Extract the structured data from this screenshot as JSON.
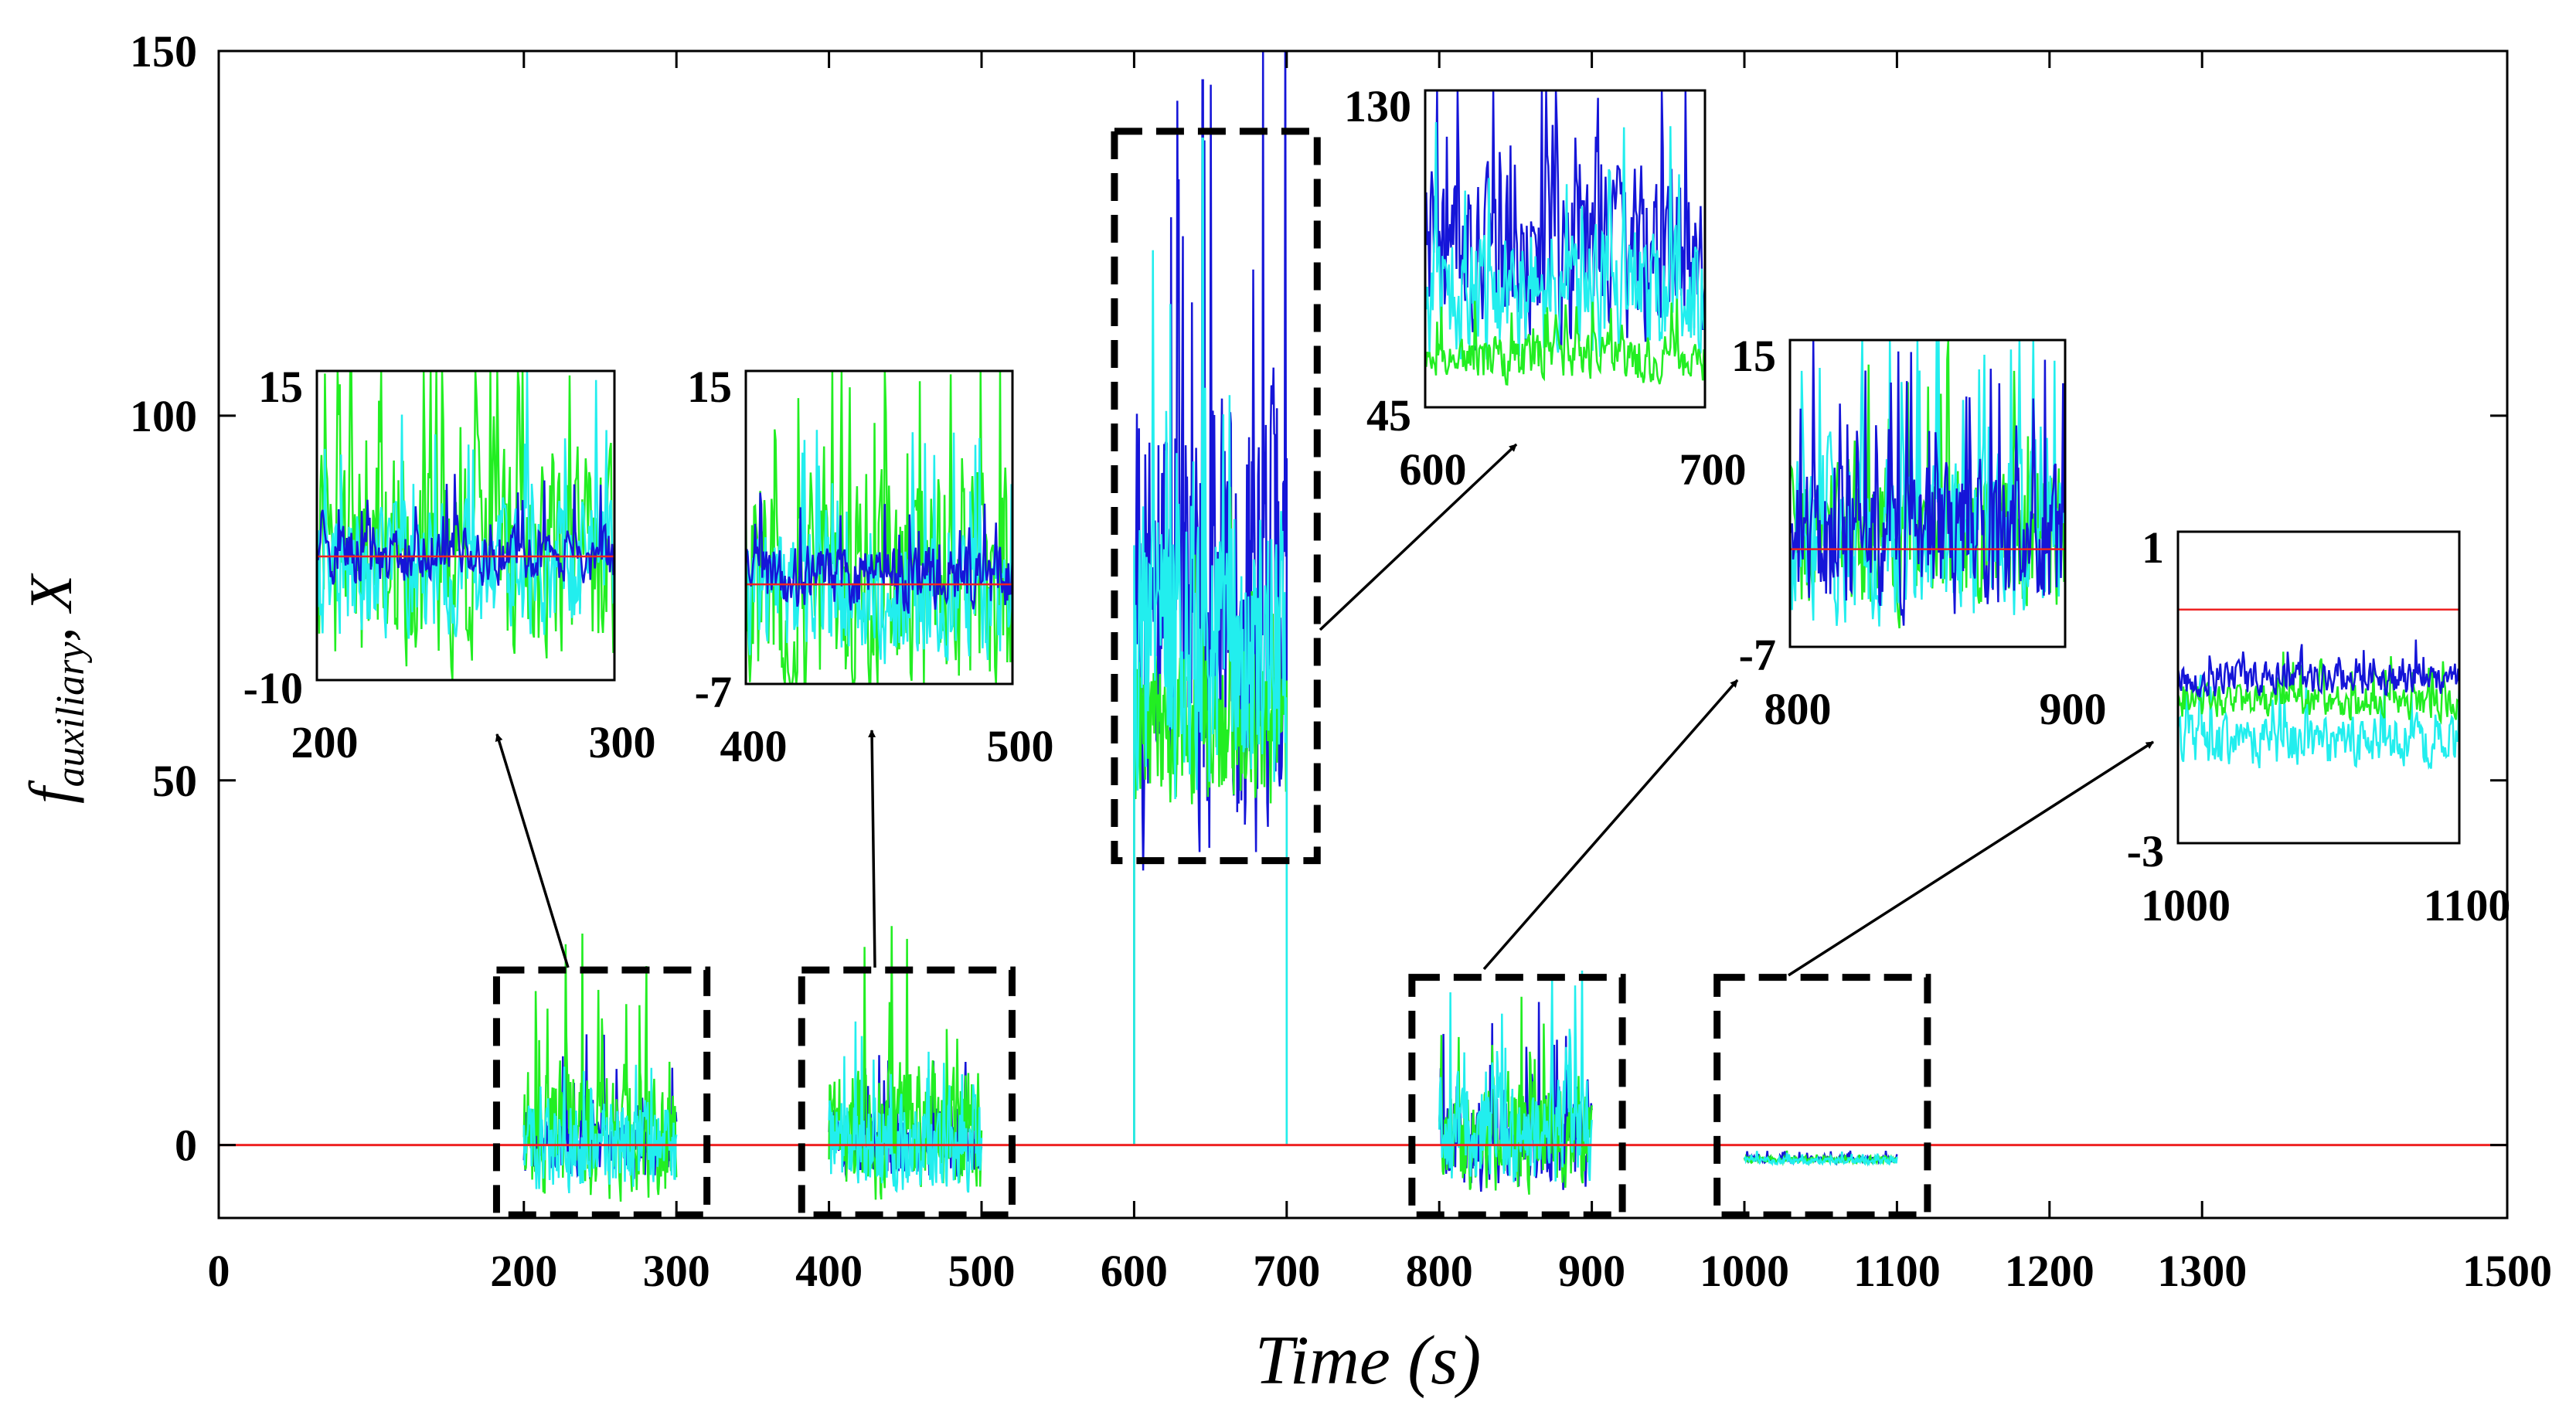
{
  "chart_data": {
    "type": "line",
    "xlabel": "Time (s)",
    "ylabel_main": "f",
    "ylabel_sub": "auxiliary",
    "ylabel_suffix": ", X",
    "xlim": [
      0,
      1500
    ],
    "ylim": [
      -10,
      150
    ],
    "xticks": [
      0,
      200,
      300,
      400,
      500,
      600,
      700,
      800,
      900,
      1000,
      1100,
      1200,
      1300,
      1500
    ],
    "yticks": [
      0,
      50,
      100,
      150
    ],
    "colors": {
      "blue": "#1515d8",
      "green": "#22ee22",
      "cyan": "#22eeee",
      "red": "#ee2222"
    },
    "reference_line": {
      "value": 0,
      "color": "#ee2222"
    },
    "series": [
      {
        "name": "blue",
        "segments": [
          {
            "start": 200,
            "end": 300,
            "mean": 0,
            "amp": 5
          },
          {
            "start": 400,
            "end": 500,
            "mean": 0,
            "amp": 5
          },
          {
            "start": 600,
            "end": 700,
            "mean": 72,
            "amp": 35,
            "peak": 146
          },
          {
            "start": 800,
            "end": 900,
            "mean": 1,
            "amp": 8
          },
          {
            "start": 1000,
            "end": 1100,
            "mean": -2,
            "amp": 0.5
          }
        ]
      },
      {
        "name": "green",
        "segments": [
          {
            "start": 200,
            "end": 300,
            "mean": 2,
            "amp": 10
          },
          {
            "start": 400,
            "end": 500,
            "mean": 2,
            "amp": 10
          },
          {
            "start": 600,
            "end": 700,
            "mean": 57,
            "amp": 12,
            "peak": 110
          },
          {
            "start": 800,
            "end": 900,
            "mean": 1,
            "amp": 8
          },
          {
            "start": 1000,
            "end": 1100,
            "mean": -2,
            "amp": 0.5
          }
        ]
      },
      {
        "name": "cyan",
        "segments": [
          {
            "start": 200,
            "end": 300,
            "mean": 0,
            "amp": 7
          },
          {
            "start": 400,
            "end": 500,
            "mean": 0,
            "amp": 7
          },
          {
            "start": 600,
            "end": 700,
            "mean": 68,
            "amp": 22,
            "peak": 138
          },
          {
            "start": 800,
            "end": 900,
            "mean": 2,
            "amp": 8
          },
          {
            "start": 1000,
            "end": 1100,
            "mean": -2.2,
            "amp": 0.5
          }
        ]
      }
    ],
    "highlight_boxes": [
      {
        "x0": 175,
        "x1": 320,
        "y0": -10,
        "y1": 24
      },
      {
        "x0": 375,
        "x1": 520,
        "y0": -10,
        "y1": 24
      },
      {
        "x0": 580,
        "x1": 720,
        "y0": 39,
        "y1": 139
      },
      {
        "x0": 775,
        "x1": 920,
        "y0": -10,
        "y1": 23
      },
      {
        "x0": 975,
        "x1": 1120,
        "y0": -10,
        "y1": 23
      }
    ],
    "insets": [
      {
        "id": "inset1",
        "xmin_label": "200",
        "xmax_label": "300",
        "ymax_label": "15",
        "ymin_label": "-10",
        "ymin": -10,
        "ymax": 15,
        "red": 0,
        "series": [
          {
            "name": "green",
            "mean": 0,
            "amp": 10
          },
          {
            "name": "cyan",
            "mean": -1,
            "amp": 6
          },
          {
            "name": "blue",
            "mean": 0,
            "amp": 2.5
          }
        ]
      },
      {
        "id": "inset2",
        "xmin_label": "400",
        "xmax_label": "500",
        "ymax_label": "15",
        "ymin_label": "-7",
        "ymin": -7,
        "ymax": 15,
        "red": 0,
        "series": [
          {
            "name": "green",
            "mean": 0,
            "amp": 9
          },
          {
            "name": "cyan",
            "mean": -1,
            "amp": 5
          },
          {
            "name": "blue",
            "mean": 0.5,
            "amp": 2.5
          }
        ]
      },
      {
        "id": "inset3",
        "xmin_label": "600",
        "xmax_label": "700",
        "ymax_label": "130",
        "ymin_label": "45",
        "ymin": 45,
        "ymax": 130,
        "red": null,
        "series": [
          {
            "name": "blue",
            "mean": 85,
            "amp": 26
          },
          {
            "name": "cyan",
            "mean": 75,
            "amp": 20
          },
          {
            "name": "green",
            "mean": 58,
            "amp": 7
          }
        ]
      },
      {
        "id": "inset4",
        "xmin_label": "800",
        "xmax_label": "900",
        "ymax_label": "15",
        "ymin_label": "-7",
        "ymin": -7,
        "ymax": 15,
        "red": 0,
        "series": [
          {
            "name": "green",
            "mean": 0.5,
            "amp": 6
          },
          {
            "name": "cyan",
            "mean": 1,
            "amp": 7
          },
          {
            "name": "blue",
            "mean": 0.5,
            "amp": 6
          }
        ]
      },
      {
        "id": "inset5",
        "xmin_label": "1000",
        "xmax_label": "1100",
        "ymax_label": "1",
        "ymin_label": "-3",
        "ymin": -3,
        "ymax": 1,
        "red": 0,
        "series": [
          {
            "name": "cyan",
            "mean": -1.7,
            "amp": 0.35
          },
          {
            "name": "green",
            "mean": -1.2,
            "amp": 0.25
          },
          {
            "name": "blue",
            "mean": -0.9,
            "amp": 0.25
          }
        ]
      }
    ]
  }
}
